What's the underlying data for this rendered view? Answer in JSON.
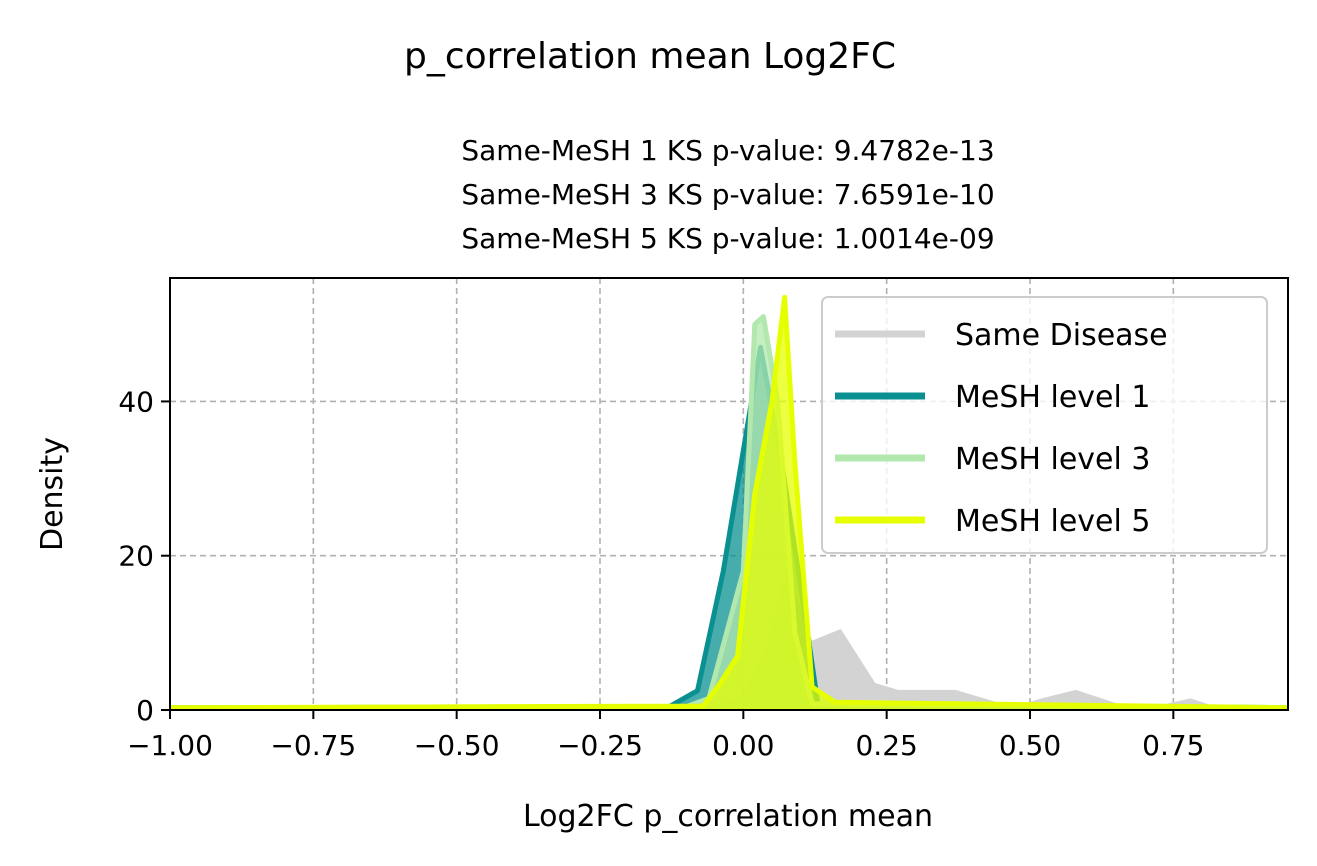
{
  "chart_data": {
    "type": "area",
    "suptitle": "p_correlation mean Log2FC",
    "title_lines": [
      "Same-MeSH 1 KS p-value: 9.4782e-13",
      "Same-MeSH 3 KS p-value: 7.6591e-10",
      "Same-MeSH 5 KS p-value: 1.0014e-09"
    ],
    "xlabel": "Log2FC p_correlation mean",
    "ylabel": "Density",
    "xlim": [
      -1.0,
      0.95
    ],
    "ylim": [
      0,
      56
    ],
    "xticks": [
      -1.0,
      -0.75,
      -0.5,
      -0.25,
      0.0,
      0.25,
      0.5,
      0.75
    ],
    "xtick_labels": [
      "−1.00",
      "−0.75",
      "−0.50",
      "−0.25",
      "0.00",
      "0.25",
      "0.50",
      "0.75"
    ],
    "yticks": [
      0,
      20,
      40
    ],
    "ytick_labels": [
      "0",
      "20",
      "40"
    ],
    "grid": true,
    "legend_position": "top-right",
    "series": [
      {
        "name": "Same Disease",
        "color": "#d3d3d3",
        "style": "filled",
        "x": [
          -1.0,
          -0.1,
          -0.05,
          0.0,
          0.04,
          0.075,
          0.12,
          0.17,
          0.23,
          0.27,
          0.37,
          0.47,
          0.52,
          0.58,
          0.67,
          0.72,
          0.78,
          0.83,
          0.95
        ],
        "y": [
          0.3,
          0.3,
          0.5,
          2.0,
          8.0,
          18.5,
          9.0,
          10.5,
          3.5,
          2.6,
          2.6,
          0.4,
          1.5,
          2.6,
          0.4,
          0.5,
          1.5,
          0.3,
          0.3
        ]
      },
      {
        "name": "MeSH level 1",
        "color": "#0a9090",
        "style": "line-filled",
        "x": [
          -1.0,
          -0.13,
          -0.08,
          -0.035,
          0.03,
          0.065,
          0.1,
          0.13,
          0.95
        ],
        "y": [
          0.3,
          0.4,
          2.5,
          18.0,
          47.0,
          33.0,
          16.0,
          0.8,
          0.3
        ]
      },
      {
        "name": "MeSH level 3",
        "color": "#b2e8ae",
        "style": "line-filled",
        "x": [
          -1.0,
          -0.1,
          -0.06,
          0.0,
          0.02,
          0.035,
          0.06,
          0.09,
          0.12,
          0.95
        ],
        "y": [
          0.3,
          0.4,
          1.5,
          18.0,
          50.0,
          51.0,
          40.0,
          10.0,
          0.8,
          0.3
        ]
      },
      {
        "name": "MeSH level 5",
        "color": "#e6ff00",
        "style": "line-filled",
        "x": [
          -1.0,
          -0.07,
          -0.04,
          -0.01,
          0.02,
          0.05,
          0.072,
          0.09,
          0.12,
          0.16,
          0.95
        ],
        "y": [
          0.3,
          0.5,
          3.5,
          7.0,
          28.0,
          40.0,
          53.5,
          32.0,
          3.0,
          1.0,
          0.3
        ]
      }
    ]
  }
}
